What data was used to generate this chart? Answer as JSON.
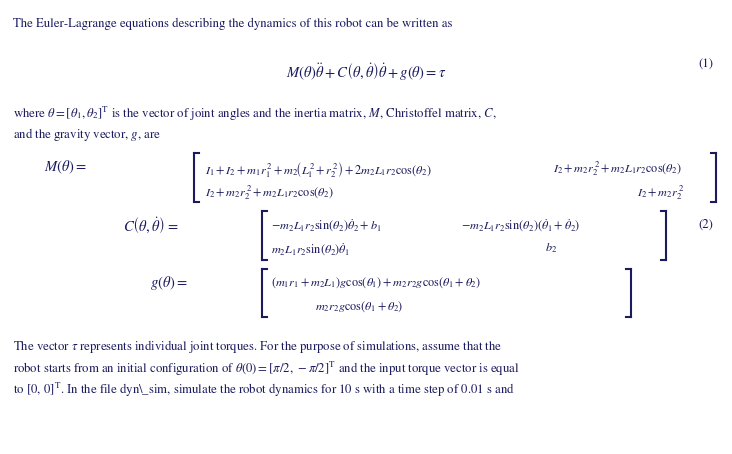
{
  "bg_color": "#ffffff",
  "text_color": "#1a1a5e",
  "fig_width": 7.32,
  "fig_height": 4.54,
  "dpi": 100,
  "font_size_body": 9.2,
  "font_size_eq": 10.5,
  "font_size_mat": 8.8,
  "line1": "The Euler-Lagrange equations describing the dynamics of this robot can be written as",
  "eq1": "$M\\left(\\theta\\right)\\ddot{\\theta}+C\\left(\\theta,\\dot{\\theta}\\right)\\dot{\\theta}+g\\left(\\theta\\right)=\\tau$",
  "eq1_num": "(1)",
  "line2a": "where $\\theta=[\\theta_1, \\theta_2]^\\mathrm{T}$ is the vector of joint angles and the inertia matrix, $M$, Christoffel matrix, $C$,",
  "line2b": "and the gravity vector, $g$, are",
  "M_label": "$M\\left(\\theta\\right)=$",
  "M_row1_left": "$I_1+I_2+m_1r_1^{\\,2}+m_2\\!\\left(L_1^2+r_2^{\\,2}\\right)+2m_2L_1r_2\\cos(\\theta_2)$",
  "M_row1_right": "$I_2+m_2r_2^{\\,2}+m_2L_1r_2\\cos(\\theta_2)$",
  "M_row2_left": "$I_2+m_2r_2^{\\,2}+m_2L_1r_2\\cos(\\theta_2)$",
  "M_row2_right": "$I_2+m_2r_2^{\\,2}$",
  "C_label": "$C\\left(\\theta,\\dot{\\theta}\\right)=$",
  "C_row1_left": "$-m_2L_1r_2\\sin(\\theta_2)\\dot{\\theta}_2+b_1$",
  "C_row1_right": "$-m_2L_1r_2\\sin(\\theta_2)(\\dot{\\theta}_1+\\dot{\\theta}_2)$",
  "C_row2_left": "$m_2L_1r_2\\sin(\\theta_2)\\dot{\\theta}_1$",
  "C_row2_right": "$b_2$",
  "g_label": "$g\\left(\\theta\\right)=$",
  "g_row1": "$(m_1r_1+m_2L_1)g\\cos(\\theta_1)+m_2r_2g\\cos(\\theta_1+\\theta_2)$",
  "g_row2": "$m_2r_2g\\cos(\\theta_1+\\theta_2)$",
  "eq2_num": "(2)",
  "line3a": "The vector $\\tau$ represents individual joint torques. For the purpose of simulations, assume that the",
  "line3b": "robot starts from an initial configuration of $\\theta(0)=[\\pi/2,\\,-\\pi/2]^\\mathrm{T}$ and the input torque vector is equal",
  "line3c": "to $[0,\\,0]^\\mathrm{T}$. In the file dyn\\_sim, simulate the robot dynamics for 10 s with a time step of 0.01 s and"
}
